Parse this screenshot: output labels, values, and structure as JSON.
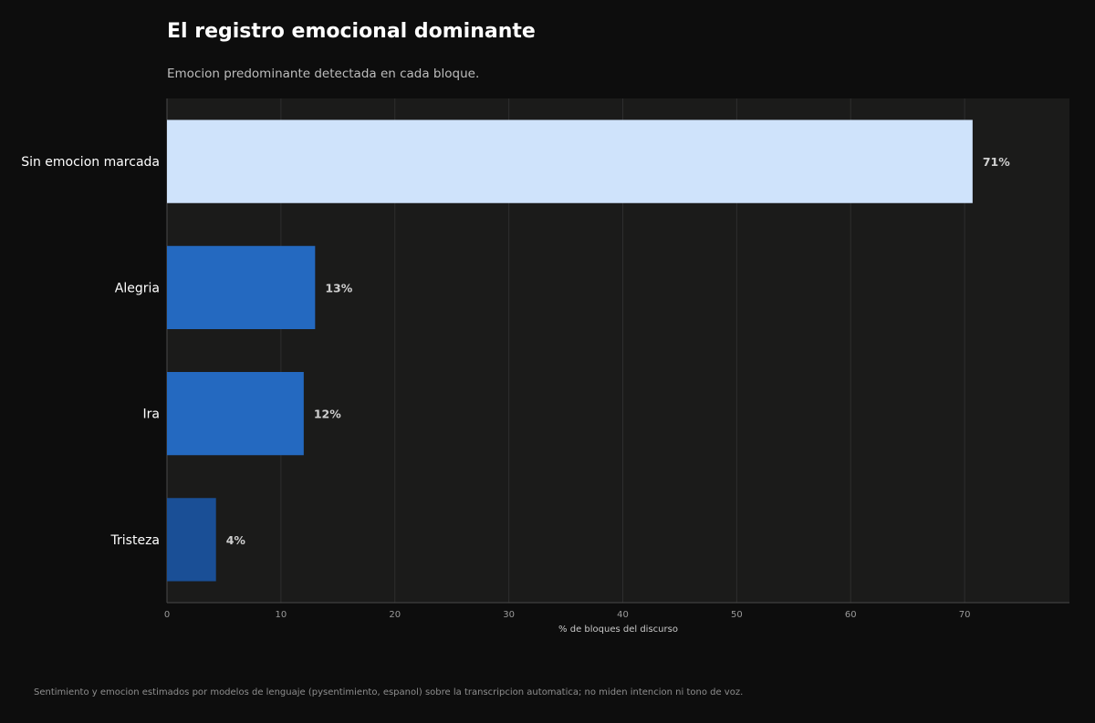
{
  "header": {
    "title": "El registro emocional dominante",
    "subtitle": "Emocion predominante detectada en cada bloque."
  },
  "footer": {
    "note": "Sentimiento y emocion estimados por modelos de lenguaje (pysentimiento, espanol) sobre la transcripcion automatica; no miden intencion ni tono de voz."
  },
  "colors": {
    "background": "#0d0d0d",
    "plot_background": "#1b1b1a",
    "gridline": "#2e2e2e",
    "axis": "#4a4a4a"
  },
  "chart_data": {
    "type": "bar",
    "orientation": "horizontal",
    "categories": [
      "Sin emocion marcada",
      "Alegria",
      "Ira",
      "Tristeza"
    ],
    "values": [
      70.7,
      13.0,
      12.0,
      4.3
    ],
    "value_labels": [
      "71%",
      "13%",
      "12%",
      "4%"
    ],
    "bar_colors": [
      "#cfe3fb",
      "#2469c0",
      "#2469c0",
      "#1a4f96"
    ],
    "title": "El registro emocional dominante",
    "subtitle": "Emocion predominante detectada en cada bloque.",
    "xlabel": "% de bloques del discurso",
    "ylabel": "",
    "xlim": [
      0,
      79.2
    ],
    "xticks": [
      0,
      10,
      20,
      30,
      40,
      50,
      60,
      70
    ],
    "grid": "vertical",
    "legend": "none"
  }
}
